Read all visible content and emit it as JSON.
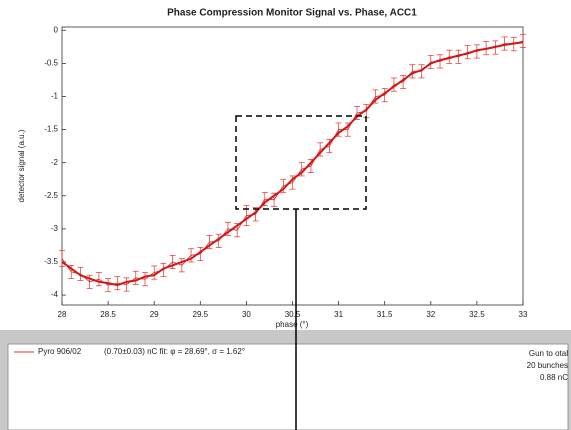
{
  "chart_data": {
    "type": "line",
    "title": "Phase Compression Monitor Signal vs. Phase, ACC1",
    "x_label": "phase (°)",
    "y_label": "detector signal (a.u.)",
    "xlim": [
      28,
      33
    ],
    "xticks": [
      28,
      28.5,
      29,
      29.5,
      30,
      30.5,
      31,
      31.5,
      32,
      32.5,
      33
    ],
    "ylim": [
      -4.15,
      0.05
    ],
    "yticks": [
      0,
      -0.5,
      -1,
      -1.5,
      -2,
      -2.5,
      -3,
      -3.5,
      -4
    ],
    "x": [
      28,
      28.1,
      28.2,
      28.3,
      28.4,
      28.5,
      28.6,
      28.7,
      28.8,
      28.9,
      29,
      29.1,
      29.2,
      29.3,
      29.4,
      29.5,
      29.6,
      29.7,
      29.8,
      29.9,
      30,
      30.1,
      30.2,
      30.3,
      30.4,
      30.5,
      30.6,
      30.7,
      30.8,
      30.9,
      31,
      31.1,
      31.2,
      31.3,
      31.4,
      31.5,
      31.6,
      31.7,
      31.8,
      31.9,
      32,
      32.1,
      32.2,
      32.3,
      32.4,
      32.5,
      32.6,
      32.7,
      32.8,
      32.9,
      33
    ],
    "series": [
      {
        "name": "Pyro 906/02",
        "color": "#e03030",
        "values": [
          -3.45,
          -3.65,
          -3.68,
          -3.8,
          -3.76,
          -3.85,
          -3.82,
          -3.84,
          -3.74,
          -3.76,
          -3.66,
          -3.62,
          -3.5,
          -3.55,
          -3.4,
          -3.38,
          -3.2,
          -3.18,
          -3.0,
          -3.02,
          -2.8,
          -2.78,
          -2.55,
          -2.56,
          -2.35,
          -2.3,
          -2.1,
          -2.05,
          -1.8,
          -1.75,
          -1.5,
          -1.5,
          -1.25,
          -1.22,
          -1.0,
          -0.98,
          -0.82,
          -0.78,
          -0.62,
          -0.62,
          -0.48,
          -0.47,
          -0.4,
          -0.4,
          -0.33,
          -0.32,
          -0.27,
          -0.26,
          -0.2,
          -0.21,
          -0.16
        ],
        "errors": [
          0.12,
          0.1,
          0.1,
          0.1,
          0.1,
          0.1,
          0.1,
          0.1,
          0.1,
          0.1,
          0.1,
          0.1,
          0.1,
          0.1,
          0.1,
          0.1,
          0.1,
          0.1,
          0.1,
          0.1,
          0.15,
          0.1,
          0.1,
          0.1,
          0.1,
          0.1,
          0.1,
          0.1,
          0.1,
          0.1,
          0.1,
          0.1,
          0.1,
          0.1,
          0.1,
          0.1,
          0.1,
          0.1,
          0.1,
          0.1,
          0.1,
          0.1,
          0.1,
          0.1,
          0.1,
          0.1,
          0.1,
          0.1,
          0.1,
          0.1,
          0.1
        ]
      }
    ],
    "fit": {
      "color": "#d01818",
      "values": [
        -3.5,
        -3.6,
        -3.7,
        -3.75,
        -3.8,
        -3.82,
        -3.85,
        -3.8,
        -3.78,
        -3.72,
        -3.7,
        -3.6,
        -3.55,
        -3.5,
        -3.45,
        -3.35,
        -3.25,
        -3.15,
        -3.05,
        -2.95,
        -2.85,
        -2.75,
        -2.6,
        -2.5,
        -2.4,
        -2.25,
        -2.15,
        -2.0,
        -1.85,
        -1.7,
        -1.55,
        -1.45,
        -1.3,
        -1.2,
        -1.05,
        -0.95,
        -0.85,
        -0.75,
        -0.65,
        -0.6,
        -0.5,
        -0.45,
        -0.42,
        -0.38,
        -0.35,
        -0.3,
        -0.28,
        -0.25,
        -0.22,
        -0.2,
        -0.18
      ]
    },
    "legend_note": "(0.70±0.03) nC  fit: φ = 28.69°, σ = 1.62°",
    "side_note": [
      "Gun to otal",
      "20 bunches",
      "0.88 nC"
    ]
  }
}
